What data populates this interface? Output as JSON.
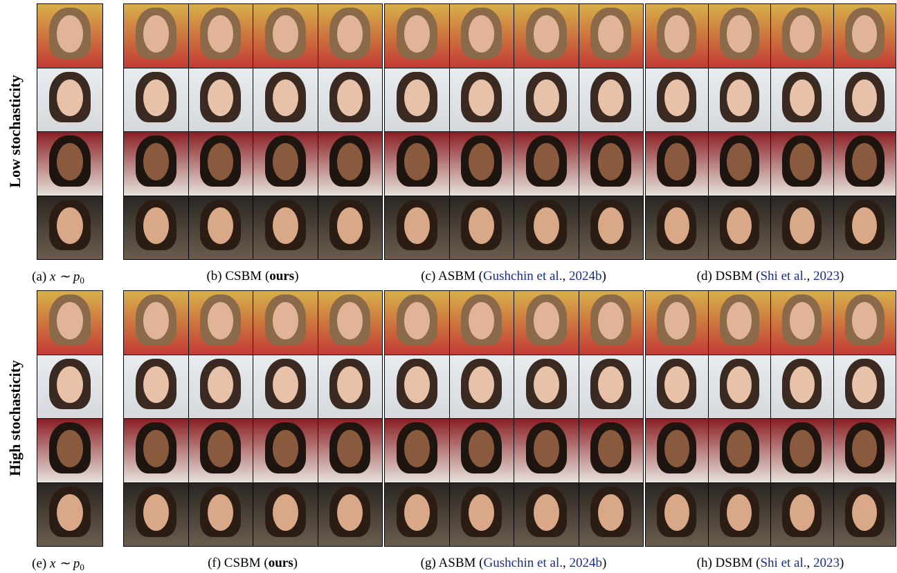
{
  "rows": [
    {
      "label": "Low stochasticity",
      "panels": [
        {
          "caption": [
            {
              "text": "(a) "
            },
            {
              "text": "x ∼ p",
              "style": "math"
            },
            {
              "text": "0",
              "style": "sub"
            }
          ]
        },
        {
          "caption": [
            {
              "text": "(b) CSBM ("
            },
            {
              "text": "ours",
              "style": "bold"
            },
            {
              "text": ")"
            }
          ]
        },
        {
          "caption": [
            {
              "text": "(c) ASBM ("
            },
            {
              "text": "Gushchin et al.",
              "style": "link"
            },
            {
              "text": ", "
            },
            {
              "text": "2024b",
              "style": "link"
            },
            {
              "text": ")"
            }
          ]
        },
        {
          "caption": [
            {
              "text": "(d) DSBM ("
            },
            {
              "text": "Shi et al.",
              "style": "link"
            },
            {
              "text": ", "
            },
            {
              "text": "2023",
              "style": "link"
            },
            {
              "text": ")"
            }
          ]
        }
      ]
    },
    {
      "label": "High stochasticity",
      "panels": [
        {
          "caption": [
            {
              "text": "(e) "
            },
            {
              "text": "x ∼ p",
              "style": "math"
            },
            {
              "text": "0",
              "style": "sub"
            }
          ]
        },
        {
          "caption": [
            {
              "text": "(f) CSBM ("
            },
            {
              "text": "ours",
              "style": "bold"
            },
            {
              "text": ")"
            }
          ]
        },
        {
          "caption": [
            {
              "text": "(g) ASBM ("
            },
            {
              "text": "Gushchin et al.",
              "style": "link"
            },
            {
              "text": ", "
            },
            {
              "text": "2024b",
              "style": "link"
            },
            {
              "text": ")"
            }
          ]
        },
        {
          "caption": [
            {
              "text": "(h) DSBM ("
            },
            {
              "text": "Shi et al.",
              "style": "link"
            },
            {
              "text": ", "
            },
            {
              "text": "2023",
              "style": "link"
            },
            {
              "text": ")"
            }
          ]
        }
      ]
    }
  ]
}
